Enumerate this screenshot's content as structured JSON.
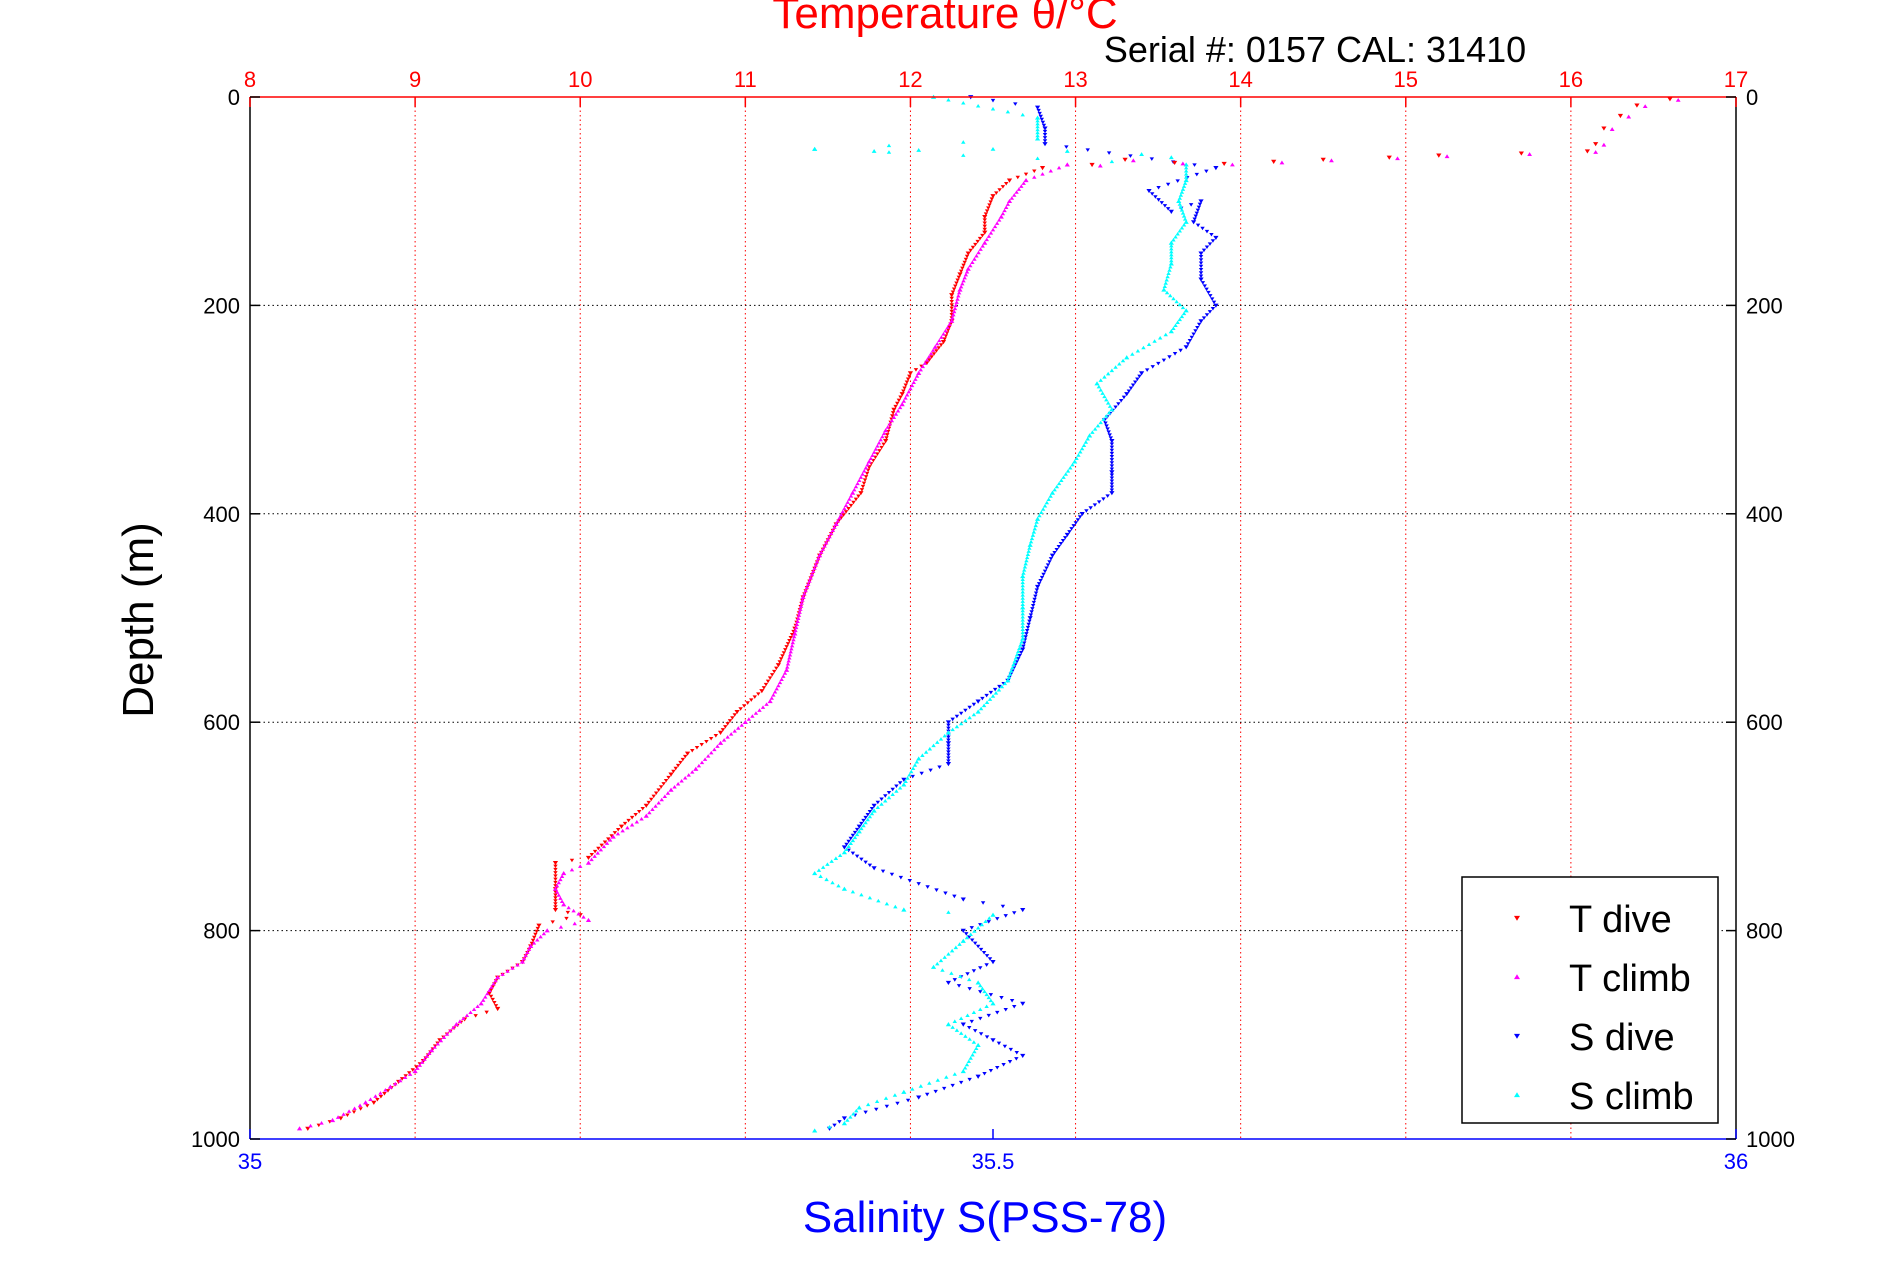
{
  "chart_data": {
    "type": "scatter",
    "title": "Temperature θ/°C",
    "subtitle": "Serial #: 0157  CAL: 31410",
    "xlabel": "Salinity S(PSS-78)",
    "ylabel": "Depth (m)",
    "x_top": {
      "lim": [
        8,
        17
      ],
      "ticks": [
        "8",
        "9",
        "10",
        "11",
        "12",
        "13",
        "14",
        "15",
        "16",
        "17"
      ],
      "color": "#ff0000"
    },
    "x_bottom": {
      "lim": [
        35,
        36
      ],
      "ticks": [
        "35",
        "35.5",
        "36"
      ],
      "color": "#0000ff"
    },
    "y": {
      "lim": [
        0,
        1000
      ],
      "ticks": [
        "0",
        "200",
        "400",
        "600",
        "800",
        "1000"
      ],
      "reversed": true
    },
    "grid": true,
    "legend_position": "bottom-right",
    "series": [
      {
        "name": "T dive",
        "axis": "temperature",
        "color": "#ff0000",
        "marker": "triangle-down",
        "points": [
          [
            12.8,
            68
          ],
          [
            12.6,
            80
          ],
          [
            12.5,
            95
          ],
          [
            12.45,
            115
          ],
          [
            12.45,
            130
          ],
          [
            12.35,
            150
          ],
          [
            12.3,
            170
          ],
          [
            12.25,
            190
          ],
          [
            12.25,
            215
          ],
          [
            12.2,
            235
          ],
          [
            12.1,
            255
          ],
          [
            12.0,
            265
          ],
          [
            11.95,
            285
          ],
          [
            11.9,
            300
          ],
          [
            11.85,
            330
          ],
          [
            11.75,
            355
          ],
          [
            11.7,
            380
          ],
          [
            11.55,
            410
          ],
          [
            11.45,
            440
          ],
          [
            11.35,
            480
          ],
          [
            11.3,
            510
          ],
          [
            11.2,
            545
          ],
          [
            11.1,
            570
          ],
          [
            10.95,
            590
          ],
          [
            10.85,
            610
          ],
          [
            10.65,
            630
          ],
          [
            10.55,
            650
          ],
          [
            10.4,
            680
          ],
          [
            10.25,
            700
          ],
          [
            10.05,
            730
          ],
          [
            9.85,
            735
          ],
          [
            9.85,
            760
          ],
          [
            9.85,
            780
          ],
          [
            10.0,
            785
          ],
          [
            9.75,
            795
          ],
          [
            9.7,
            815
          ],
          [
            9.65,
            830
          ],
          [
            9.5,
            845
          ],
          [
            9.45,
            860
          ],
          [
            9.5,
            875
          ],
          [
            9.3,
            885
          ],
          [
            9.15,
            905
          ],
          [
            9.05,
            925
          ],
          [
            8.9,
            945
          ],
          [
            8.75,
            965
          ],
          [
            8.55,
            980
          ],
          [
            8.35,
            990
          ]
        ]
      },
      {
        "name": "T climb",
        "axis": "temperature",
        "color": "#ff00ff",
        "marker": "triangle-up",
        "points": [
          [
            12.95,
            65
          ],
          [
            12.7,
            80
          ],
          [
            12.6,
            100
          ],
          [
            12.55,
            115
          ],
          [
            12.45,
            140
          ],
          [
            12.35,
            165
          ],
          [
            12.3,
            185
          ],
          [
            12.25,
            215
          ],
          [
            12.15,
            240
          ],
          [
            12.05,
            265
          ],
          [
            11.95,
            295
          ],
          [
            11.85,
            320
          ],
          [
            11.75,
            350
          ],
          [
            11.65,
            380
          ],
          [
            11.55,
            410
          ],
          [
            11.45,
            440
          ],
          [
            11.35,
            480
          ],
          [
            11.3,
            515
          ],
          [
            11.25,
            550
          ],
          [
            11.15,
            580
          ],
          [
            11.0,
            600
          ],
          [
            10.85,
            620
          ],
          [
            10.7,
            645
          ],
          [
            10.55,
            665
          ],
          [
            10.4,
            690
          ],
          [
            10.2,
            710
          ],
          [
            10.05,
            735
          ],
          [
            9.9,
            745
          ],
          [
            9.85,
            760
          ],
          [
            9.9,
            775
          ],
          [
            10.05,
            790
          ],
          [
            9.8,
            800
          ],
          [
            9.7,
            815
          ],
          [
            9.65,
            830
          ],
          [
            9.5,
            845
          ],
          [
            9.4,
            870
          ],
          [
            9.25,
            890
          ],
          [
            9.1,
            915
          ],
          [
            9.0,
            935
          ],
          [
            8.85,
            950
          ],
          [
            8.7,
            965
          ],
          [
            8.5,
            982
          ],
          [
            8.3,
            990
          ]
        ]
      },
      {
        "name": "S dive",
        "axis": "salinity",
        "color": "#0000ff",
        "marker": "triangle-down",
        "points": [
          [
            35.485,
            0
          ],
          [
            35.53,
            10
          ],
          [
            35.535,
            30
          ],
          [
            35.535,
            45
          ],
          [
            35.65,
            68
          ],
          [
            35.605,
            90
          ],
          [
            35.62,
            110
          ],
          [
            35.64,
            100
          ],
          [
            35.635,
            120
          ],
          [
            35.65,
            135
          ],
          [
            35.64,
            150
          ],
          [
            35.64,
            175
          ],
          [
            35.65,
            200
          ],
          [
            35.64,
            215
          ],
          [
            35.63,
            240
          ],
          [
            35.6,
            265
          ],
          [
            35.59,
            285
          ],
          [
            35.575,
            310
          ],
          [
            35.58,
            330
          ],
          [
            35.58,
            360
          ],
          [
            35.58,
            380
          ],
          [
            35.56,
            400
          ],
          [
            35.55,
            420
          ],
          [
            35.54,
            440
          ],
          [
            35.53,
            470
          ],
          [
            35.525,
            500
          ],
          [
            35.52,
            530
          ],
          [
            35.51,
            560
          ],
          [
            35.49,
            580
          ],
          [
            35.47,
            600
          ],
          [
            35.47,
            620
          ],
          [
            35.47,
            640
          ],
          [
            35.44,
            655
          ],
          [
            35.42,
            680
          ],
          [
            35.41,
            700
          ],
          [
            35.4,
            720
          ],
          [
            35.42,
            740
          ],
          [
            35.48,
            770
          ],
          [
            35.52,
            780
          ],
          [
            35.48,
            800
          ],
          [
            35.5,
            830
          ],
          [
            35.47,
            850
          ],
          [
            35.52,
            870
          ],
          [
            35.48,
            890
          ],
          [
            35.5,
            905
          ],
          [
            35.52,
            920
          ],
          [
            35.49,
            940
          ],
          [
            35.45,
            960
          ],
          [
            35.4,
            980
          ],
          [
            35.39,
            990
          ]
        ]
      },
      {
        "name": "S climb",
        "axis": "salinity",
        "color": "#00ffff",
        "marker": "triangle-up",
        "points": [
          [
            35.46,
            0
          ],
          [
            35.53,
            20
          ],
          [
            35.53,
            40
          ],
          [
            35.38,
            50
          ],
          [
            35.63,
            65
          ],
          [
            35.63,
            80
          ],
          [
            35.625,
            100
          ],
          [
            35.63,
            120
          ],
          [
            35.62,
            140
          ],
          [
            35.62,
            160
          ],
          [
            35.615,
            185
          ],
          [
            35.63,
            205
          ],
          [
            35.62,
            225
          ],
          [
            35.59,
            250
          ],
          [
            35.57,
            275
          ],
          [
            35.58,
            300
          ],
          [
            35.565,
            325
          ],
          [
            35.555,
            350
          ],
          [
            35.54,
            380
          ],
          [
            35.53,
            405
          ],
          [
            35.525,
            430
          ],
          [
            35.52,
            460
          ],
          [
            35.52,
            490
          ],
          [
            35.52,
            520
          ],
          [
            35.51,
            560
          ],
          [
            35.49,
            590
          ],
          [
            35.47,
            610
          ],
          [
            35.45,
            635
          ],
          [
            35.44,
            660
          ],
          [
            35.42,
            685
          ],
          [
            35.41,
            705
          ],
          [
            35.4,
            725
          ],
          [
            35.38,
            745
          ],
          [
            35.4,
            760
          ],
          [
            35.44,
            780
          ],
          [
            35.5,
            785
          ],
          [
            35.48,
            810
          ],
          [
            35.46,
            835
          ],
          [
            35.49,
            850
          ],
          [
            35.5,
            870
          ],
          [
            35.47,
            890
          ],
          [
            35.49,
            910
          ],
          [
            35.48,
            935
          ],
          [
            35.44,
            955
          ],
          [
            35.41,
            970
          ],
          [
            35.4,
            985
          ],
          [
            35.38,
            992
          ]
        ]
      }
    ]
  }
}
